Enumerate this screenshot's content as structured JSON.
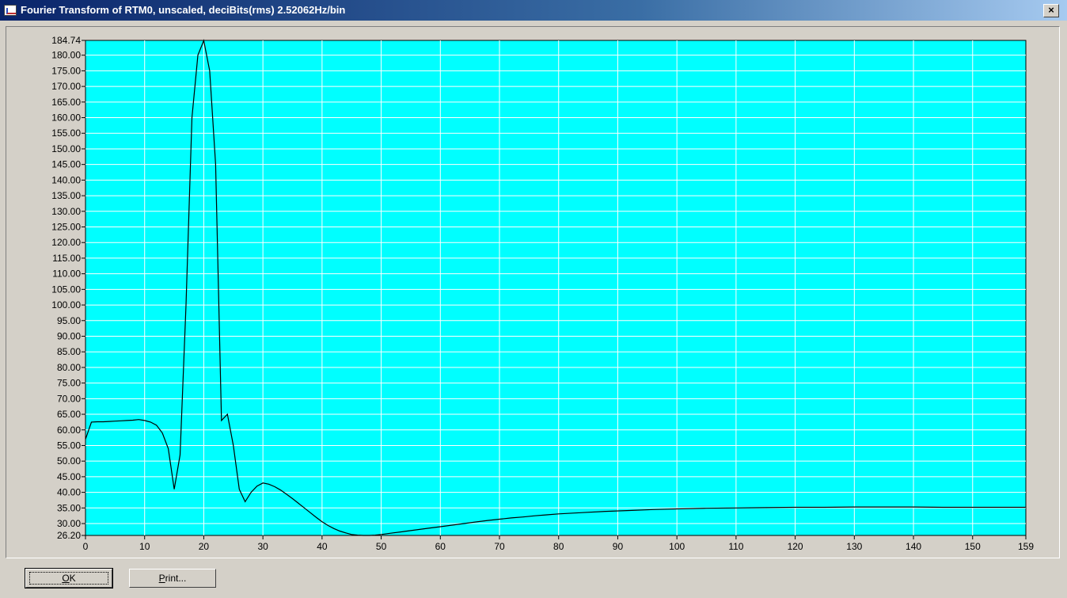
{
  "window": {
    "title": "Fourier Transform of RTM0, unscaled, deciBits(rms)  2.52062Hz/bin",
    "close_label": "×"
  },
  "buttons": {
    "ok": {
      "mnemonic": "O",
      "rest": "K"
    },
    "print": {
      "mnemonic": "P",
      "rest": "rint..."
    }
  },
  "colors": {
    "plot_bg": "#00ffff",
    "grid": "#ffffff",
    "line": "#000000"
  },
  "chart_data": {
    "type": "line",
    "title": "",
    "xlabel": "",
    "ylabel": "",
    "xlim": [
      0,
      159
    ],
    "ylim": [
      26.2,
      184.74
    ],
    "grid": true,
    "x_ticks": [
      0,
      10,
      20,
      30,
      40,
      50,
      60,
      70,
      80,
      90,
      100,
      110,
      120,
      130,
      140,
      150,
      159
    ],
    "y_ticks": [
      "184.74",
      "180.00",
      "175.00",
      "170.00",
      "165.00",
      "160.00",
      "155.00",
      "150.00",
      "145.00",
      "140.00",
      "135.00",
      "130.00",
      "125.00",
      "120.00",
      "115.00",
      "110.00",
      "105.00",
      "100.00",
      "95.00",
      "90.00",
      "85.00",
      "80.00",
      "75.00",
      "70.00",
      "65.00",
      "60.00",
      "55.00",
      "50.00",
      "45.00",
      "40.00",
      "35.00",
      "30.00",
      "26.20"
    ],
    "series": [
      {
        "x": [
          0,
          1,
          2,
          3,
          4,
          5,
          6,
          7,
          8,
          9,
          10,
          11,
          12,
          13,
          14,
          15,
          16,
          17,
          18,
          19,
          20,
          21,
          22,
          23,
          24,
          25,
          26,
          27,
          28,
          29,
          30,
          31,
          32,
          33,
          34,
          35,
          36,
          37,
          38,
          39,
          40,
          41,
          42,
          43,
          44,
          45,
          46,
          47,
          48,
          49,
          50,
          52,
          54,
          56,
          58,
          60,
          62,
          64,
          66,
          68,
          70,
          72,
          74,
          76,
          78,
          80,
          84,
          88,
          92,
          96,
          100,
          105,
          110,
          115,
          120,
          125,
          130,
          135,
          140,
          145,
          150,
          155,
          159
        ],
        "y": [
          57,
          62.5,
          62.6,
          62.6,
          62.7,
          62.8,
          62.9,
          63,
          63.1,
          63.3,
          63,
          62.5,
          61.5,
          59,
          54,
          41,
          52,
          100,
          160,
          180,
          184.7,
          175,
          145,
          63,
          65,
          55,
          41,
          37,
          40,
          42,
          43,
          42.6,
          41.8,
          40.7,
          39.4,
          38,
          36.5,
          35,
          33.5,
          32,
          30.6,
          29.4,
          28.4,
          27.6,
          27,
          26.5,
          26.3,
          26.2,
          26.2,
          26.3,
          26.5,
          27,
          27.5,
          28,
          28.5,
          29,
          29.5,
          30,
          30.5,
          31,
          31.4,
          31.8,
          32.1,
          32.5,
          32.8,
          33.1,
          33.5,
          33.9,
          34.2,
          34.5,
          34.7,
          34.9,
          35,
          35.1,
          35.2,
          35.2,
          35.3,
          35.3,
          35.3,
          35.2,
          35.2,
          35.2,
          35.2
        ]
      }
    ]
  }
}
